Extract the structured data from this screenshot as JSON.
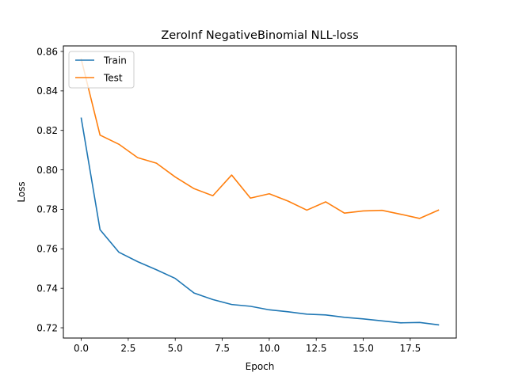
{
  "chart_data": {
    "type": "line",
    "title": "ZeroInf NegativeBinomial NLL-loss",
    "xlabel": "Epoch",
    "ylabel": "Loss",
    "xlim": [
      -0.95,
      19.95
    ],
    "ylim": [
      0.7148,
      0.8628
    ],
    "xticks": [
      0,
      2.5,
      5,
      7.5,
      10,
      12.5,
      15,
      17.5
    ],
    "xtick_labels": [
      "0.0",
      "2.5",
      "5.0",
      "7.5",
      "10.0",
      "12.5",
      "15.0",
      "17.5"
    ],
    "yticks": [
      0.72,
      0.74,
      0.76,
      0.78,
      0.8,
      0.82,
      0.84,
      0.86
    ],
    "ytick_labels": [
      "0.72",
      "0.74",
      "0.76",
      "0.78",
      "0.80",
      "0.82",
      "0.84",
      "0.86"
    ],
    "grid": false,
    "legend_position": "top-left",
    "x": [
      0,
      1,
      2,
      3,
      4,
      5,
      6,
      7,
      8,
      9,
      10,
      11,
      12,
      13,
      14,
      15,
      16,
      17,
      18,
      19
    ],
    "series": [
      {
        "name": "Train",
        "color": "#1f77b4",
        "values": [
          0.8262,
          0.7697,
          0.7583,
          0.7535,
          0.7494,
          0.745,
          0.7376,
          0.7343,
          0.7318,
          0.7309,
          0.7291,
          0.7281,
          0.7269,
          0.7265,
          0.7253,
          0.7245,
          0.7235,
          0.7225,
          0.7227,
          0.7215
        ]
      },
      {
        "name": "Test",
        "color": "#ff7f0e",
        "values": [
          0.8561,
          0.8176,
          0.813,
          0.8062,
          0.8034,
          0.7964,
          0.7905,
          0.7869,
          0.7974,
          0.7857,
          0.7879,
          0.7842,
          0.7796,
          0.7838,
          0.7781,
          0.7792,
          0.7795,
          0.7775,
          0.7754,
          0.7796
        ]
      }
    ]
  }
}
